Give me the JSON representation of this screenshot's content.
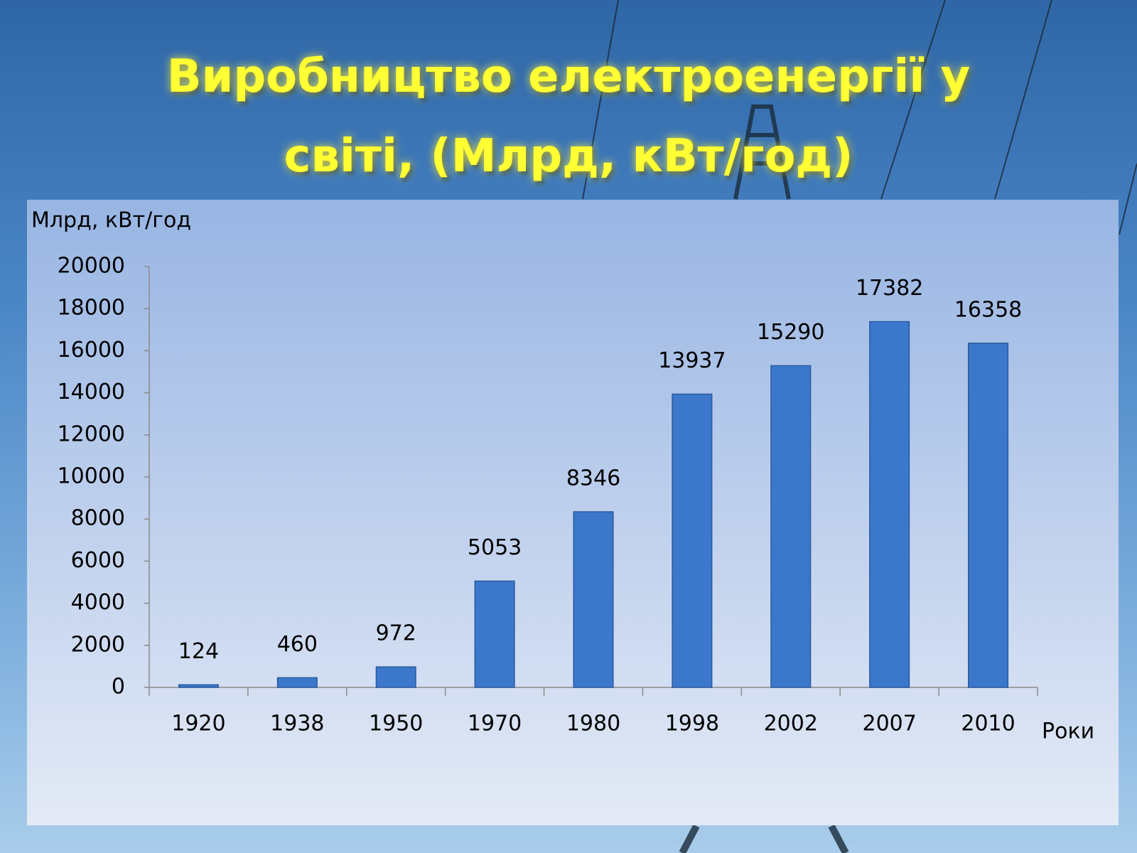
{
  "chart_data": {
    "type": "bar",
    "title": "Виробництво електроенергії у світі, (Млрд, кВт/год)",
    "y_axis_label": "Млрд, кВт/год",
    "x_axis_label": "Роки",
    "categories": [
      "1920",
      "1938",
      "1950",
      "1970",
      "1980",
      "1998",
      "2002",
      "2007",
      "2010"
    ],
    "values": [
      124,
      460,
      972,
      5053,
      8346,
      13937,
      15290,
      17382,
      16358
    ],
    "color": "#3b78cc",
    "ylim": [
      0,
      20000
    ],
    "yticks": [
      0,
      2000,
      4000,
      6000,
      8000,
      10000,
      12000,
      14000,
      16000,
      18000,
      20000
    ],
    "grid": false
  }
}
